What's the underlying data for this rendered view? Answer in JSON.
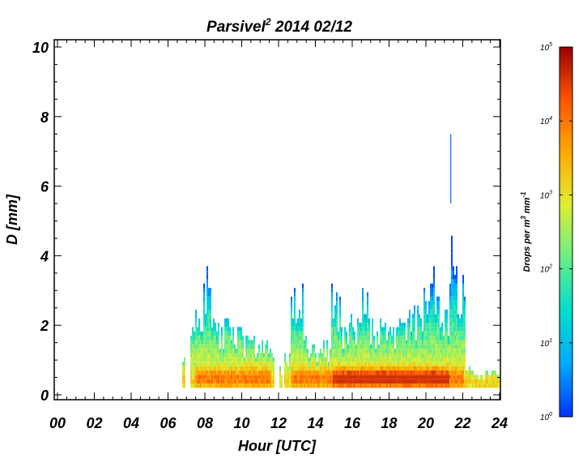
{
  "title": {
    "main": "Parsivel",
    "sup": "2",
    "rest": " 2014 02/12"
  },
  "chart_data": {
    "type": "heatmap",
    "title": "Parsivel2 2014 02/12",
    "xlabel": "Hour [UTC]",
    "ylabel": "D [mm]",
    "xlim": [
      0,
      24
    ],
    "ylim": [
      0,
      10
    ],
    "x_ticks": [
      "00",
      "02",
      "04",
      "06",
      "08",
      "10",
      "12",
      "14",
      "16",
      "18",
      "20",
      "22",
      "24"
    ],
    "y_ticks": [
      "0",
      "2",
      "4",
      "6",
      "8",
      "10"
    ],
    "colorbar": {
      "label_main": "Drops per m",
      "label_sup1": "3",
      "label_mid": " mm",
      "label_sup2": "-1",
      "scale": "log",
      "range": [
        1,
        100000
      ],
      "ticks": [
        {
          "base": "10",
          "exp": "0"
        },
        {
          "base": "10",
          "exp": "1"
        },
        {
          "base": "10",
          "exp": "2"
        },
        {
          "base": "10",
          "exp": "3"
        },
        {
          "base": "10",
          "exp": "4"
        },
        {
          "base": "10",
          "exp": "5"
        }
      ],
      "colormap": [
        "#0033ff",
        "#00aaff",
        "#00ddcc",
        "#66ee88",
        "#ddee33",
        "#ffaa00",
        "#ff5500",
        "#990000"
      ]
    },
    "grid": false,
    "events": [
      {
        "start": 6.75,
        "end": 6.9,
        "max_d": 1.1
      },
      {
        "start": 7.2,
        "end": 7.9,
        "max_d": 2.5
      },
      {
        "start": 7.9,
        "end": 8.3,
        "max_d": 3.7
      },
      {
        "start": 8.3,
        "end": 9.0,
        "max_d": 2.2
      },
      {
        "start": 9.0,
        "end": 9.3,
        "max_d": 3.2
      },
      {
        "start": 9.3,
        "end": 10.0,
        "max_d": 2.1
      },
      {
        "start": 10.0,
        "end": 11.7,
        "max_d": 1.7
      },
      {
        "start": 12.0,
        "end": 12.2,
        "max_d": 0.8
      },
      {
        "start": 12.3,
        "end": 12.6,
        "max_d": 1.2
      },
      {
        "start": 12.6,
        "end": 13.3,
        "max_d": 3.2
      },
      {
        "start": 13.3,
        "end": 14.0,
        "max_d": 1.7
      },
      {
        "start": 14.0,
        "end": 14.8,
        "max_d": 1.5
      },
      {
        "start": 14.8,
        "end": 15.3,
        "max_d": 3.2
      },
      {
        "start": 15.3,
        "end": 16.5,
        "max_d": 2.3
      },
      {
        "start": 16.5,
        "end": 16.9,
        "max_d": 3.3
      },
      {
        "start": 16.9,
        "end": 18.5,
        "max_d": 2.2
      },
      {
        "start": 18.5,
        "end": 19.8,
        "max_d": 2.5
      },
      {
        "start": 19.8,
        "end": 20.5,
        "max_d": 3.7
      },
      {
        "start": 20.5,
        "end": 21.2,
        "max_d": 2.8
      },
      {
        "start": 21.2,
        "end": 21.6,
        "max_d": 4.7
      },
      {
        "start": 21.6,
        "end": 22.1,
        "max_d": 3.7
      },
      {
        "start": 22.1,
        "end": 22.5,
        "max_d": 0.8
      },
      {
        "start": 22.5,
        "end": 24.0,
        "max_d": 0.7
      }
    ],
    "core_regions": [
      {
        "start": 7.4,
        "end": 11.6,
        "center": 0.45,
        "half_width": 0.2
      },
      {
        "start": 12.6,
        "end": 22.0,
        "center": 0.4,
        "half_width": 0.22
      },
      {
        "start": 14.9,
        "end": 21.2,
        "center": 0.35,
        "half_width": 0.15
      }
    ],
    "isolated_drops": [
      {
        "x": 21.35,
        "d_low": 5.5,
        "d_high": 7.5
      }
    ]
  }
}
